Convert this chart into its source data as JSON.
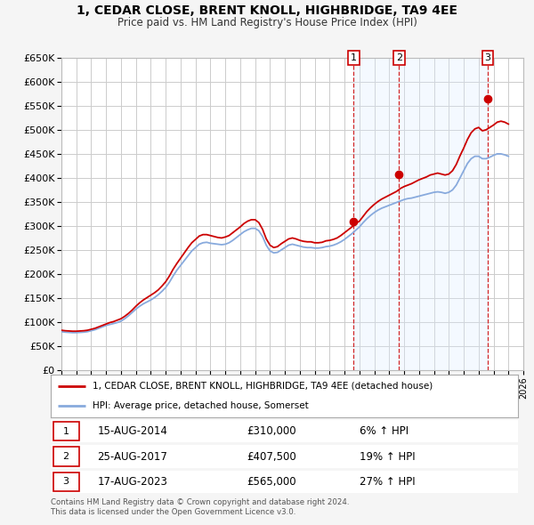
{
  "title": "1, CEDAR CLOSE, BRENT KNOLL, HIGHBRIDGE, TA9 4EE",
  "subtitle": "Price paid vs. HM Land Registry's House Price Index (HPI)",
  "ylim": [
    0,
    650000
  ],
  "yticks": [
    0,
    50000,
    100000,
    150000,
    200000,
    250000,
    300000,
    350000,
    400000,
    450000,
    500000,
    550000,
    600000,
    650000
  ],
  "xlim_start": 1995,
  "xlim_end": 2026,
  "background_color": "#f5f5f5",
  "plot_bg_color": "#ffffff",
  "grid_color": "#cccccc",
  "sale_color": "#cc0000",
  "hpi_color": "#88aadd",
  "sale_shade_color": "#ddeeff",
  "legend_label_sale": "1, CEDAR CLOSE, BRENT KNOLL, HIGHBRIDGE, TA9 4EE (detached house)",
  "legend_label_hpi": "HPI: Average price, detached house, Somerset",
  "sales": [
    {
      "num": 1,
      "date": "15-AUG-2014",
      "price": 310000,
      "pct": "6%",
      "year": 2014.62
    },
    {
      "num": 2,
      "date": "25-AUG-2017",
      "price": 407500,
      "pct": "19%",
      "year": 2017.65
    },
    {
      "num": 3,
      "date": "17-AUG-2023",
      "price": 565000,
      "pct": "27%",
      "year": 2023.62
    }
  ],
  "footer1": "Contains HM Land Registry data © Crown copyright and database right 2024.",
  "footer2": "This data is licensed under the Open Government Licence v3.0.",
  "hpi_years": [
    1995.0,
    1995.25,
    1995.5,
    1995.75,
    1996.0,
    1996.25,
    1996.5,
    1996.75,
    1997.0,
    1997.25,
    1997.5,
    1997.75,
    1998.0,
    1998.25,
    1998.5,
    1998.75,
    1999.0,
    1999.25,
    1999.5,
    1999.75,
    2000.0,
    2000.25,
    2000.5,
    2000.75,
    2001.0,
    2001.25,
    2001.5,
    2001.75,
    2002.0,
    2002.25,
    2002.5,
    2002.75,
    2003.0,
    2003.25,
    2003.5,
    2003.75,
    2004.0,
    2004.25,
    2004.5,
    2004.75,
    2005.0,
    2005.25,
    2005.5,
    2005.75,
    2006.0,
    2006.25,
    2006.5,
    2006.75,
    2007.0,
    2007.25,
    2007.5,
    2007.75,
    2008.0,
    2008.25,
    2008.5,
    2008.75,
    2009.0,
    2009.25,
    2009.5,
    2009.75,
    2010.0,
    2010.25,
    2010.5,
    2010.75,
    2011.0,
    2011.25,
    2011.5,
    2011.75,
    2012.0,
    2012.25,
    2012.5,
    2012.75,
    2013.0,
    2013.25,
    2013.5,
    2013.75,
    2014.0,
    2014.25,
    2014.5,
    2014.75,
    2015.0,
    2015.25,
    2015.5,
    2015.75,
    2016.0,
    2016.25,
    2016.5,
    2016.75,
    2017.0,
    2017.25,
    2017.5,
    2017.75,
    2018.0,
    2018.25,
    2018.5,
    2018.75,
    2019.0,
    2019.25,
    2019.5,
    2019.75,
    2020.0,
    2020.25,
    2020.5,
    2020.75,
    2021.0,
    2021.25,
    2021.5,
    2021.75,
    2022.0,
    2022.25,
    2022.5,
    2022.75,
    2023.0,
    2023.25,
    2023.5,
    2023.75,
    2024.0,
    2024.25,
    2024.5,
    2024.75,
    2025.0
  ],
  "hpi_values": [
    80000,
    79000,
    78500,
    78000,
    78000,
    78500,
    79000,
    80000,
    82000,
    84000,
    87000,
    90000,
    93000,
    95000,
    97000,
    99000,
    102000,
    107000,
    113000,
    120000,
    127000,
    133000,
    138000,
    142000,
    146000,
    151000,
    157000,
    164000,
    172000,
    183000,
    196000,
    208000,
    218000,
    228000,
    238000,
    248000,
    255000,
    262000,
    265000,
    266000,
    264000,
    263000,
    262000,
    261000,
    262000,
    265000,
    270000,
    276000,
    282000,
    288000,
    292000,
    295000,
    295000,
    290000,
    278000,
    260000,
    248000,
    244000,
    245000,
    250000,
    255000,
    260000,
    262000,
    260000,
    258000,
    256000,
    255000,
    255000,
    254000,
    254000,
    255000,
    257000,
    258000,
    260000,
    263000,
    267000,
    272000,
    278000,
    284000,
    291000,
    298000,
    307000,
    315000,
    322000,
    328000,
    333000,
    337000,
    340000,
    343000,
    346000,
    349000,
    352000,
    355000,
    357000,
    358000,
    360000,
    362000,
    364000,
    366000,
    368000,
    370000,
    371000,
    370000,
    368000,
    370000,
    375000,
    385000,
    400000,
    415000,
    430000,
    440000,
    445000,
    445000,
    440000,
    440000,
    443000,
    447000,
    450000,
    450000,
    448000,
    445000
  ],
  "sale_years": [
    1995.0,
    1995.25,
    1995.5,
    1995.75,
    1996.0,
    1996.25,
    1996.5,
    1996.75,
    1997.0,
    1997.25,
    1997.5,
    1997.75,
    1998.0,
    1998.25,
    1998.5,
    1998.75,
    1999.0,
    1999.25,
    1999.5,
    1999.75,
    2000.0,
    2000.25,
    2000.5,
    2000.75,
    2001.0,
    2001.25,
    2001.5,
    2001.75,
    2002.0,
    2002.25,
    2002.5,
    2002.75,
    2003.0,
    2003.25,
    2003.5,
    2003.75,
    2004.0,
    2004.25,
    2004.5,
    2004.75,
    2005.0,
    2005.25,
    2005.5,
    2005.75,
    2006.0,
    2006.25,
    2006.5,
    2006.75,
    2007.0,
    2007.25,
    2007.5,
    2007.75,
    2008.0,
    2008.25,
    2008.5,
    2008.75,
    2009.0,
    2009.25,
    2009.5,
    2009.75,
    2010.0,
    2010.25,
    2010.5,
    2010.75,
    2011.0,
    2011.25,
    2011.5,
    2011.75,
    2012.0,
    2012.25,
    2012.5,
    2012.75,
    2013.0,
    2013.25,
    2013.5,
    2013.75,
    2014.0,
    2014.25,
    2014.5,
    2014.75,
    2015.0,
    2015.25,
    2015.5,
    2015.75,
    2016.0,
    2016.25,
    2016.5,
    2016.75,
    2017.0,
    2017.25,
    2017.5,
    2017.75,
    2018.0,
    2018.25,
    2018.5,
    2018.75,
    2019.0,
    2019.25,
    2019.5,
    2019.75,
    2020.0,
    2020.25,
    2020.5,
    2020.75,
    2021.0,
    2021.25,
    2021.5,
    2021.75,
    2022.0,
    2022.25,
    2022.5,
    2022.75,
    2023.0,
    2023.25,
    2023.5,
    2023.75,
    2024.0,
    2024.25,
    2024.5,
    2024.75,
    2025.0
  ],
  "sale_values": [
    83000,
    82000,
    81500,
    81000,
    81000,
    81500,
    82000,
    83000,
    85000,
    87000,
    90000,
    93000,
    96000,
    99000,
    101000,
    104000,
    107000,
    112000,
    118000,
    125000,
    133000,
    140000,
    146000,
    151000,
    156000,
    161000,
    167000,
    175000,
    184000,
    196000,
    210000,
    222000,
    233000,
    244000,
    255000,
    265000,
    272000,
    279000,
    282000,
    282000,
    280000,
    278000,
    276000,
    275000,
    277000,
    280000,
    286000,
    292000,
    298000,
    305000,
    310000,
    313000,
    313000,
    307000,
    293000,
    273000,
    260000,
    255000,
    257000,
    263000,
    268000,
    273000,
    275000,
    273000,
    270000,
    268000,
    267000,
    267000,
    265000,
    265000,
    266000,
    269000,
    270000,
    272000,
    275000,
    280000,
    286000,
    292000,
    298000,
    305000,
    310000,
    320000,
    330000,
    338000,
    345000,
    351000,
    356000,
    360000,
    364000,
    368000,
    372000,
    378000,
    382000,
    385000,
    388000,
    392000,
    396000,
    399000,
    402000,
    406000,
    408000,
    410000,
    408000,
    406000,
    408000,
    415000,
    428000,
    446000,
    462000,
    480000,
    494000,
    502000,
    505000,
    498000,
    500000,
    505000,
    510000,
    516000,
    518000,
    516000,
    512000
  ]
}
